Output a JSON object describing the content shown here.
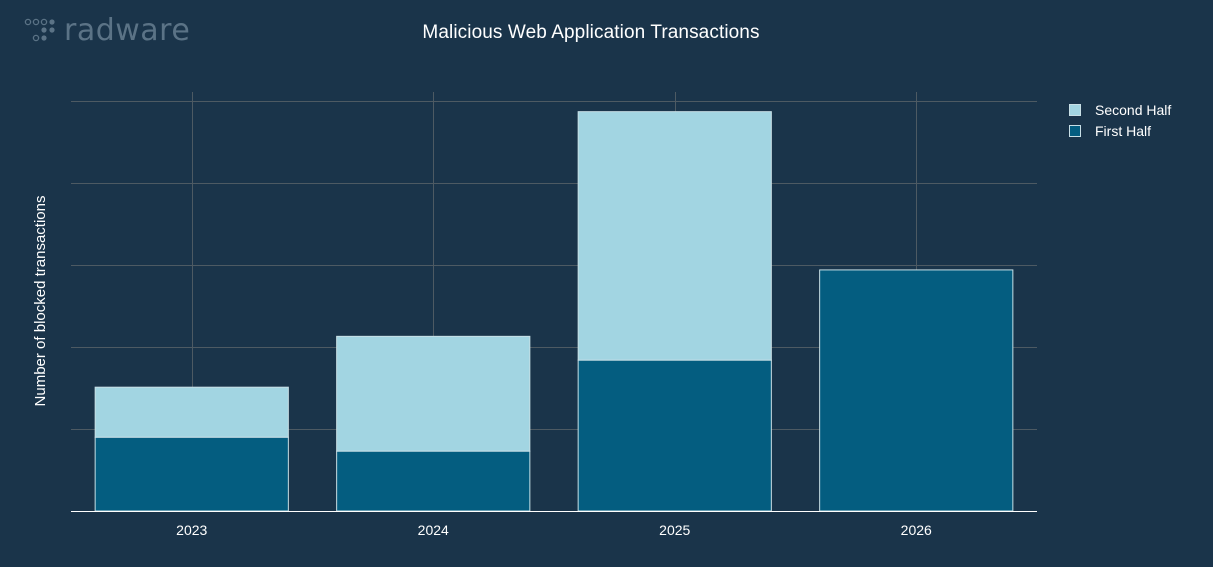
{
  "logo": {
    "text": "radware",
    "icon": "radware-dots-icon"
  },
  "chart_data": {
    "type": "bar",
    "stacked": true,
    "title": "Malicious Web Application Transactions",
    "xlabel": "",
    "ylabel": "Number of blocked transactions",
    "categories": [
      "2023",
      "2024",
      "2025",
      "2026"
    ],
    "series": [
      {
        "name": "First Half",
        "values": [
          0.9,
          0.73,
          1.84,
          2.94
        ],
        "color": "#045d80"
      },
      {
        "name": "Second Half",
        "values": [
          0.61,
          1.4,
          3.03,
          0
        ],
        "color": "#a2d5e2"
      }
    ],
    "ylim": [
      0,
      5
    ],
    "y_tick_labels_shown": false,
    "grid": true,
    "legend": "right",
    "legend_order": [
      "Second Half",
      "First Half"
    ],
    "colors": {
      "background": "#1a344a",
      "grid": "#4d5a63",
      "text": "#ffffff",
      "bar_border": "#c8dfe6"
    }
  }
}
